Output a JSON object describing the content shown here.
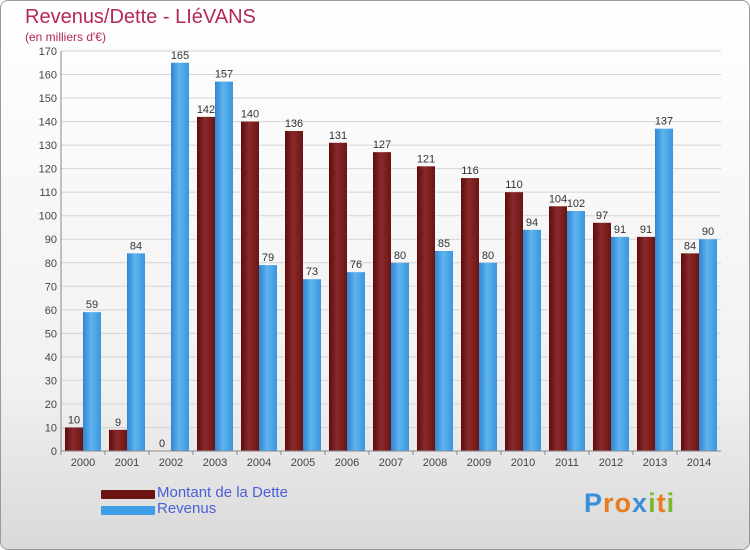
{
  "chart_data": {
    "type": "bar",
    "title": "Revenus/Dette - LIéVANS",
    "subtitle": "(en milliers d'€)",
    "categories": [
      "2000",
      "2001",
      "2002",
      "2003",
      "2004",
      "2005",
      "2006",
      "2007",
      "2008",
      "2009",
      "2010",
      "2011",
      "2012",
      "2013",
      "2014"
    ],
    "series": [
      {
        "name": "Montant de la Dette",
        "color": "#7a1a1a",
        "values": [
          10,
          9,
          0,
          142,
          140,
          136,
          131,
          127,
          121,
          116,
          110,
          104,
          97,
          91,
          84
        ]
      },
      {
        "name": "Revenus",
        "color": "#3f9ee6",
        "values": [
          59,
          84,
          165,
          157,
          79,
          73,
          76,
          80,
          85,
          80,
          94,
          102,
          91,
          137,
          90
        ]
      }
    ],
    "ylim": [
      0,
      170
    ],
    "yticks": [
      0,
      10,
      20,
      30,
      40,
      50,
      60,
      70,
      80,
      90,
      100,
      110,
      120,
      130,
      140,
      150,
      160,
      170
    ],
    "grid": true,
    "legend": "bottom-left"
  },
  "brand": {
    "name": "Proxiti",
    "letters": [
      "P",
      "r",
      "o",
      "x",
      "i",
      "t",
      "i"
    ],
    "letter_colors": [
      "#3a8fd8",
      "#e87d1e",
      "#e87d1e",
      "#3a8fd8",
      "#7cb82f",
      "#e87d1e",
      "#7cb82f"
    ]
  }
}
